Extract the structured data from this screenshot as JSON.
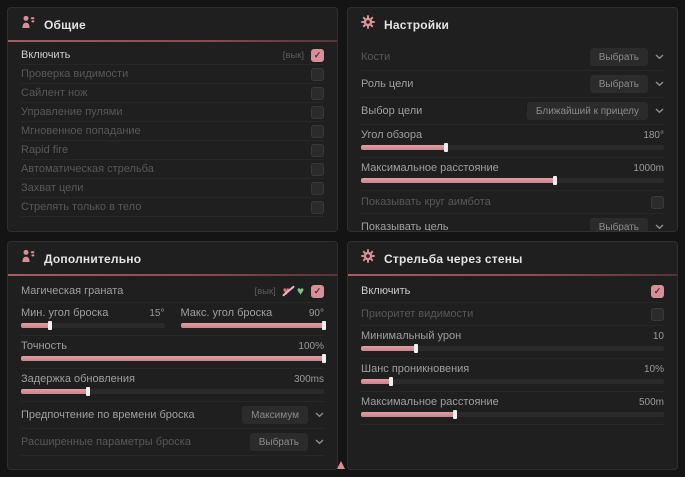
{
  "colors": {
    "accent": "#d78f9b",
    "heart_off": "#d96a76",
    "heart_on": "#7cc47c",
    "panel_bg": "#1f1f1f"
  },
  "panels": {
    "general": {
      "title": "Общие",
      "rows": [
        {
          "label": "Включить",
          "tag": "[вык]",
          "checked": true
        },
        {
          "label": "Проверка видимости",
          "checked": false
        },
        {
          "label": "Сайлент нож",
          "checked": false
        },
        {
          "label": "Управление пулями",
          "checked": false
        },
        {
          "label": "Мгновенное попадание",
          "checked": false
        },
        {
          "label": "Rapid fire",
          "checked": false
        },
        {
          "label": "Автоматическая стрельба",
          "checked": false
        },
        {
          "label": "Захват цели",
          "checked": false
        },
        {
          "label": "Стрелять только в тело",
          "checked": false
        }
      ]
    },
    "settings": {
      "title": "Настройки",
      "bones": {
        "label": "Кости",
        "value": "Выбрать"
      },
      "target_role": {
        "label": "Роль цели",
        "value": "Выбрать"
      },
      "target_choice": {
        "label": "Выбор цели",
        "value": "Ближайший к прицелу"
      },
      "fov": {
        "label": "Угол обзора",
        "value": "180°",
        "fill": 28
      },
      "max_distance": {
        "label": "Максимальное расстояние",
        "value": "1000m",
        "fill": 64
      },
      "show_circle": {
        "label": "Показывать круг аимбота",
        "checked": false
      },
      "show_target": {
        "label": "Показывать цель",
        "value": "Выбрать"
      }
    },
    "additional": {
      "title": "Дополнительно",
      "magic_grenade": {
        "label": "Магическая граната",
        "tag": "[вык]",
        "checked": true
      },
      "min_angle": {
        "label": "Мин. угол броска",
        "value": "15°",
        "fill": 20
      },
      "max_angle": {
        "label": "Макс. угол броска",
        "value": "90°",
        "fill": 100
      },
      "accuracy": {
        "label": "Точность",
        "value": "100%",
        "fill": 100
      },
      "update_delay": {
        "label": "Задержка обновления",
        "value": "300ms",
        "fill": 22
      },
      "throw_time": {
        "label": "Предпочтение по времени броска",
        "value": "Максимум"
      },
      "advanced": {
        "label": "Расширенные параметры броска",
        "value": "Выбрать"
      }
    },
    "walls": {
      "title": "Стрельба через стены",
      "enable": {
        "label": "Включить",
        "checked": true
      },
      "visibility_priority": {
        "label": "Приоритет видимости",
        "checked": false
      },
      "min_damage": {
        "label": "Минимальный урон",
        "value": "10",
        "fill": 18
      },
      "penetration_chance": {
        "label": "Шанс проникновения",
        "value": "10%",
        "fill": 10
      },
      "max_distance": {
        "label": "Максимальное расстояние",
        "value": "500m",
        "fill": 31
      }
    }
  }
}
